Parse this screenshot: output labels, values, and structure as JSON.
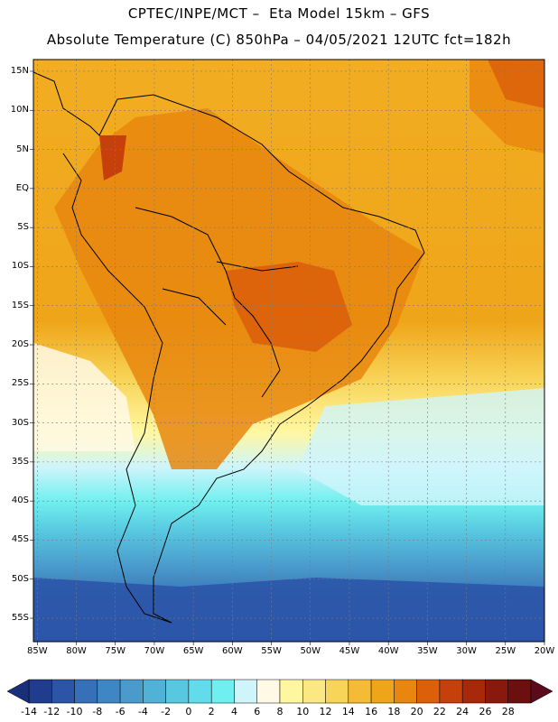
{
  "header": {
    "line1": "CPTEC/INPE/MCT –  Eta Model 15km – GFS",
    "line2": "Absolute Temperature (C) 850hPa – 04/05/2021 12UTC fct=182h"
  },
  "map": {
    "lat_labels": [
      "15N",
      "10N",
      "5N",
      "EQ",
      "5S",
      "10S",
      "15S",
      "20S",
      "25S",
      "30S",
      "35S",
      "40S",
      "45S",
      "50S",
      "55S"
    ],
    "lon_labels": [
      "85W",
      "80W",
      "75W",
      "70W",
      "65W",
      "60W",
      "55W",
      "50W",
      "45W",
      "40W",
      "35W",
      "30W",
      "25W",
      "20W"
    ],
    "extent": {
      "lon_min": -85.5,
      "lon_max": -20,
      "lat_min": -58,
      "lat_max": 16.5
    },
    "field_description_colors": {
      "warm_max": "#d0400c",
      "warm": "#f0a020",
      "mild": "#f8e090",
      "cool": "#60e8f0",
      "cold": "#3050a0"
    }
  },
  "colorbar": {
    "labels": [
      "-14",
      "-12",
      "-10",
      "-8",
      "-6",
      "-4",
      "-2",
      "0",
      "2",
      "4",
      "6",
      "8",
      "10",
      "12",
      "14",
      "16",
      "18",
      "20",
      "22",
      "24",
      "26",
      "28"
    ],
    "colors": [
      "#1f3c8f",
      "#2c55a8",
      "#3570b8",
      "#3f86c4",
      "#4a9bcc",
      "#50b2d6",
      "#58c8e0",
      "#62dcea",
      "#6fefef",
      "#cff5fb",
      "#fff9e6",
      "#fff7a0",
      "#fbe882",
      "#f8d458",
      "#f3bb36",
      "#efa519",
      "#e8860e",
      "#dc5f0a",
      "#c5400b",
      "#a8290a",
      "#88190c",
      "#6b0f0f"
    ]
  }
}
